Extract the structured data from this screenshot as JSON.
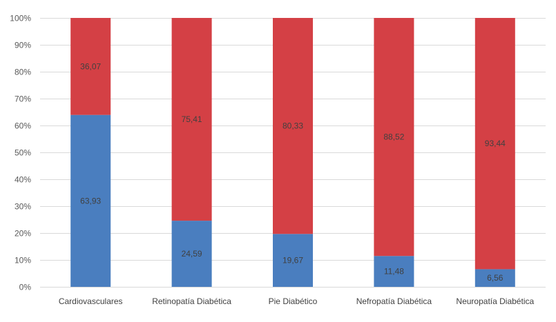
{
  "chart_data": {
    "type": "bar",
    "stacked": true,
    "percent_stacked": true,
    "categories": [
      "Cardiovasculares",
      "Retinopatía Diabética",
      "Pie Diabético",
      "Nefropatía Diabética",
      "Neuropatía Diabética"
    ],
    "series": [
      {
        "values": [
          63.93,
          24.59,
          19.67,
          11.48,
          6.56
        ],
        "labels": [
          "63,93",
          "24,59",
          "19,67",
          "11,48",
          "6,56"
        ],
        "color": "#4a7ebf"
      },
      {
        "values": [
          36.07,
          75.41,
          80.33,
          88.52,
          93.44
        ],
        "labels": [
          "36,07",
          "75,41",
          "80,33",
          "88,52",
          "93,44"
        ],
        "color": "#d44045"
      }
    ],
    "yticks": [
      "0%",
      "10%",
      "20%",
      "30%",
      "40%",
      "50%",
      "60%",
      "70%",
      "80%",
      "90%",
      "100%"
    ],
    "ylim": [
      0,
      100
    ],
    "title": "",
    "xlabel": "",
    "ylabel": "",
    "grid": true,
    "legend": "none"
  }
}
